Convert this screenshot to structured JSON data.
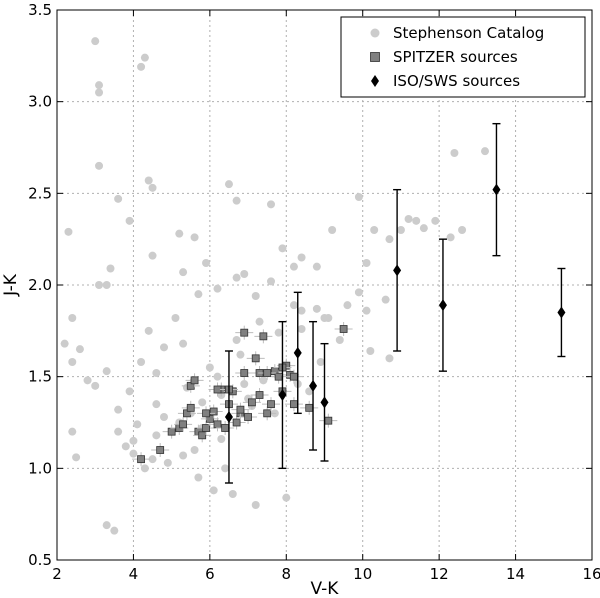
{
  "chart_data": {
    "type": "scatter",
    "xlabel": "V-K",
    "ylabel": "J-K",
    "xlim": [
      2,
      16
    ],
    "ylim": [
      0.5,
      3.5
    ],
    "xticks": [
      "2",
      "4",
      "6",
      "8",
      "10",
      "12",
      "14",
      "16"
    ],
    "yticks": [
      "0.5",
      "1.0",
      "1.5",
      "2.0",
      "2.5",
      "3.0",
      "3.5"
    ],
    "grid": true,
    "legend_position": "top-right",
    "colors": {
      "stephenson": "#cccccc",
      "spitzer": "#808080",
      "iso": "#000000"
    },
    "series": [
      {
        "name": "Stephenson Catalog",
        "marker": "circle",
        "x": [
          3.0,
          3.1,
          3.1,
          4.3,
          4.2,
          3.1,
          5.2,
          4.4,
          4.5,
          2.3,
          3.4,
          3.3,
          3.6,
          3.9,
          4.5,
          5.3,
          3.1,
          2.4,
          4.4,
          2.6,
          2.4,
          2.2,
          3.3,
          2.8,
          3.0,
          2.4,
          2.5,
          6.5,
          6.7,
          7.6,
          7.9,
          8.2,
          8.4,
          8.8,
          9.2,
          9.9,
          10.1,
          10.3,
          10.7,
          11.0,
          11.2,
          11.4,
          11.6,
          11.9,
          12.3,
          12.4,
          12.6,
          13.2,
          10.1,
          10.6,
          9.9,
          9.6,
          9.1,
          8.8,
          8.4,
          8.2,
          7.6,
          7.2,
          6.9,
          6.7,
          6.2,
          5.7,
          5.9,
          5.6,
          5.1,
          4.8,
          4.6,
          4.2,
          3.9,
          3.6,
          3.6,
          4.0,
          4.5,
          4.9,
          5.3,
          5.7,
          6.1,
          6.6,
          7.2,
          8.0,
          5.2,
          5.5,
          5.8,
          6.3,
          7.0,
          4.1,
          3.8,
          4.6,
          4.0,
          4.3,
          3.3,
          3.5,
          8.6,
          7.4,
          6.0,
          6.8,
          5.3,
          6.7,
          7.8,
          7.3,
          8.4,
          9.0,
          10.2,
          10.7,
          9.4,
          8.9,
          6.2,
          5.4,
          6.9,
          7.1,
          5.0,
          4.8,
          4.6,
          5.6,
          6.4,
          7.7,
          8.3,
          5.8,
          6.3
        ],
        "y": [
          3.33,
          3.09,
          3.05,
          3.24,
          3.19,
          2.65,
          2.28,
          2.57,
          2.53,
          2.29,
          2.09,
          2.0,
          2.47,
          2.35,
          2.16,
          2.07,
          2.0,
          1.82,
          1.75,
          1.65,
          1.58,
          1.68,
          1.53,
          1.48,
          1.45,
          1.2,
          1.06,
          2.55,
          2.46,
          2.44,
          2.2,
          2.1,
          2.15,
          2.1,
          2.3,
          2.48,
          2.12,
          2.3,
          2.25,
          2.3,
          2.36,
          2.35,
          2.31,
          2.35,
          2.26,
          2.72,
          2.3,
          2.73,
          1.86,
          1.92,
          1.96,
          1.89,
          1.82,
          1.87,
          1.86,
          1.89,
          2.02,
          1.94,
          2.06,
          2.04,
          1.98,
          1.95,
          2.12,
          2.26,
          1.82,
          1.66,
          1.52,
          1.58,
          1.42,
          1.32,
          1.2,
          1.15,
          1.05,
          1.03,
          1.07,
          0.95,
          0.88,
          0.86,
          0.8,
          0.84,
          1.25,
          1.3,
          1.36,
          1.4,
          1.38,
          1.24,
          1.12,
          1.18,
          1.08,
          1.0,
          0.69,
          0.66,
          1.42,
          1.48,
          1.55,
          1.62,
          1.68,
          1.7,
          1.74,
          1.8,
          1.76,
          1.82,
          1.64,
          1.6,
          1.7,
          1.58,
          1.5,
          1.44,
          1.46,
          1.34,
          1.2,
          1.28,
          1.35,
          1.1,
          1.0,
          1.3,
          1.46,
          1.22,
          1.16
        ]
      },
      {
        "name": "SPITZER sources",
        "marker": "square",
        "x": [
          4.2,
          4.7,
          5.0,
          5.2,
          5.3,
          5.4,
          5.5,
          5.5,
          5.6,
          5.7,
          5.8,
          5.9,
          6.0,
          6.1,
          6.2,
          6.3,
          6.4,
          6.5,
          6.6,
          6.7,
          6.8,
          6.9,
          7.0,
          7.1,
          7.2,
          7.3,
          7.4,
          7.5,
          7.6,
          7.7,
          7.8,
          7.9,
          8.0,
          8.1,
          8.2,
          8.6,
          9.1,
          9.5,
          5.9,
          6.2,
          6.8,
          7.3,
          7.5,
          6.5,
          6.9,
          7.9,
          8.2
        ],
        "y": [
          1.05,
          1.1,
          1.2,
          1.22,
          1.24,
          1.3,
          1.33,
          1.45,
          1.48,
          1.2,
          1.18,
          1.22,
          1.27,
          1.31,
          1.24,
          1.43,
          1.22,
          1.35,
          1.42,
          1.25,
          1.3,
          1.74,
          1.28,
          1.36,
          1.6,
          1.52,
          1.72,
          1.3,
          1.35,
          1.53,
          1.5,
          1.42,
          1.56,
          1.51,
          1.5,
          1.33,
          1.26,
          1.76,
          1.3,
          1.43,
          1.32,
          1.4,
          1.52,
          1.43,
          1.52,
          1.55,
          1.35
        ]
      },
      {
        "name": "ISO/SWS sources",
        "marker": "diamond",
        "x": [
          6.5,
          7.9,
          8.3,
          8.7,
          9.0,
          10.9,
          12.1,
          13.5,
          15.2
        ],
        "y": [
          1.28,
          1.4,
          1.63,
          1.45,
          1.36,
          2.08,
          1.89,
          2.52,
          1.85
        ],
        "yerr": [
          0.36,
          0.4,
          0.33,
          0.35,
          0.32,
          0.44,
          0.36,
          0.36,
          0.24
        ]
      }
    ]
  }
}
